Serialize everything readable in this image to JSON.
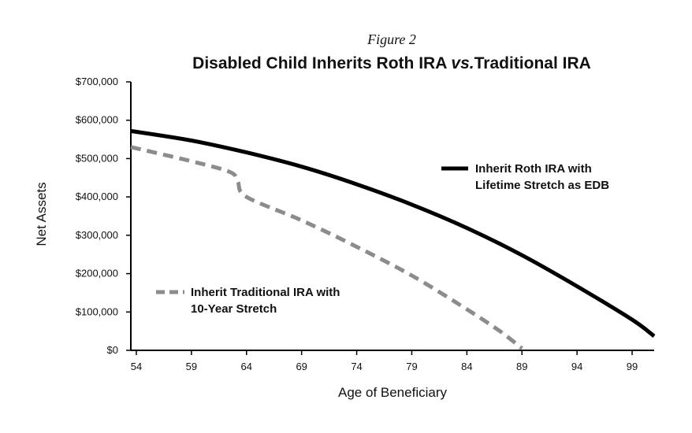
{
  "chart_data": {
    "type": "line",
    "figure_label": "Figure 2",
    "title": {
      "part1": "Disabled Child Inherits Roth IRA ",
      "part2": "vs.",
      "part3": "Traditional IRA"
    },
    "xlabel": "Age of Beneficiary",
    "ylabel": "Net Assets",
    "xlim": [
      53.5,
      101
    ],
    "ylim": [
      0,
      700000
    ],
    "x_ticks": [
      54,
      59,
      64,
      69,
      74,
      79,
      84,
      89,
      94,
      99
    ],
    "x_tick_labels": [
      "54",
      "59",
      "64",
      "69",
      "74",
      "79",
      "84",
      "89",
      "94",
      "99"
    ],
    "y_ticks": [
      0,
      100000,
      200000,
      300000,
      400000,
      500000,
      600000,
      700000
    ],
    "y_tick_labels": [
      "$0",
      "$100,000",
      "$200,000",
      "$300,000",
      "$400,000",
      "$500,000",
      "$600,000",
      "$700,000"
    ],
    "grid": false,
    "series": [
      {
        "name_lines": [
          "Inherit Roth IRA with",
          "Lifetime Stretch as EDB"
        ],
        "color": "#000000",
        "style": "solid",
        "legend_position": "right-middle",
        "x": [
          53.5,
          59,
          64,
          69,
          74,
          79,
          84,
          89,
          94,
          99,
          101
        ],
        "y": [
          572000,
          547000,
          516000,
          479000,
          433000,
          380000,
          319000,
          248000,
          167000,
          80000,
          37000
        ]
      },
      {
        "name_lines": [
          "Inherit Traditional IRA with",
          "10-Year Stretch"
        ],
        "color": "#8c8c8c",
        "style": "dashed",
        "legend_position": "lower-left",
        "x": [
          53.5,
          59,
          62.5,
          63.2,
          64,
          69,
          74,
          79,
          84,
          87,
          89
        ],
        "y": [
          530000,
          493000,
          465000,
          440000,
          400000,
          339000,
          270000,
          195000,
          107000,
          50000,
          5000
        ]
      }
    ]
  }
}
